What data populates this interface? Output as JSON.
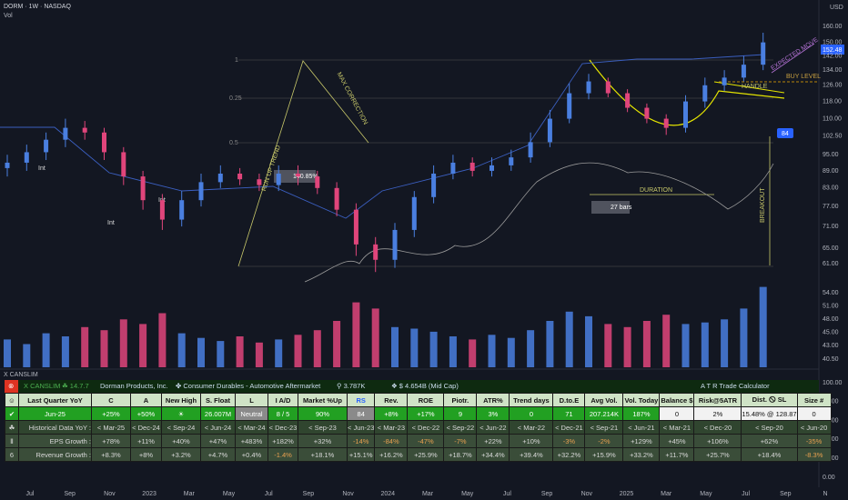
{
  "header": {
    "symbol": "DORM · 1W · NASDAQ",
    "pane": "Vol",
    "currency": "USD",
    "footer_label": "X CANSLIM",
    "last_price": "152.48"
  },
  "price_axis": [
    "160.00",
    "150.00",
    "142.00",
    "134.00",
    "126.00",
    "118.00",
    "110.00",
    "102.50",
    "95.00",
    "89.00",
    "83.00",
    "77.00",
    "71.00",
    "65.00",
    "61.00"
  ],
  "volume_axis": [
    "54.00",
    "51.00",
    "48.00",
    "45.00",
    "43.00",
    "40.50"
  ],
  "osc_axis": [
    "100.00",
    "80.00",
    "60.00",
    "40.00",
    "20.00",
    "0.00"
  ],
  "time_axis": [
    "Jul",
    "Sep",
    "Nov",
    "2023",
    "Mar",
    "May",
    "Jul",
    "Sep",
    "Nov",
    "2024",
    "Mar",
    "May",
    "Jul",
    "Sep",
    "Nov",
    "2025",
    "Mar",
    "May",
    "Jul",
    "Sep",
    "N"
  ],
  "annotations": {
    "level_1": "1",
    "level_025": "0.25",
    "level_05": "0.5",
    "run_up": "RUN UP TREND",
    "max_correction": "MAX CORRECTION",
    "gain": "140.85%",
    "bars": "27 bars",
    "duration": "DURATION",
    "handle": "HANDLE",
    "buy_level": "BUY LEVEL",
    "expected_move": "EXPECTED MOVE",
    "breakout": "BREAKOUT",
    "rs_badge": "84",
    "int": "Int"
  },
  "candles": {
    "up_color": "#4a7fe0",
    "down_color": "#e0457b",
    "open": [
      90,
      92,
      96,
      101,
      106,
      104,
      96,
      87,
      79,
      73,
      79,
      85,
      88,
      86,
      84,
      88,
      87,
      83,
      76,
      66,
      62,
      70,
      80,
      88,
      92,
      89,
      91,
      94,
      100,
      110,
      122,
      128,
      122,
      115,
      110,
      106,
      118,
      126,
      130,
      137
    ],
    "high": [
      95,
      99,
      104,
      110,
      109,
      106,
      98,
      89,
      81,
      82,
      88,
      91,
      90,
      88,
      91,
      91,
      89,
      85,
      78,
      68,
      72,
      82,
      91,
      95,
      94,
      94,
      97,
      104,
      114,
      127,
      132,
      130,
      124,
      117,
      112,
      121,
      130,
      134,
      142,
      156
    ],
    "low": [
      87,
      89,
      93,
      98,
      101,
      93,
      84,
      76,
      70,
      71,
      77,
      83,
      84,
      82,
      82,
      84,
      81,
      74,
      63,
      59,
      60,
      68,
      78,
      86,
      87,
      87,
      89,
      92,
      98,
      108,
      119,
      120,
      113,
      108,
      103,
      104,
      115,
      123,
      128,
      134
    ],
    "close": [
      92,
      96,
      101,
      106,
      104,
      96,
      87,
      79,
      73,
      79,
      85,
      88,
      86,
      84,
      88,
      87,
      83,
      76,
      66,
      62,
      70,
      80,
      88,
      92,
      89,
      91,
      94,
      100,
      110,
      122,
      128,
      122,
      115,
      110,
      106,
      118,
      126,
      130,
      137,
      150
    ],
    "volume": [
      180,
      150,
      220,
      200,
      260,
      240,
      310,
      280,
      350,
      220,
      190,
      170,
      200,
      160,
      180,
      210,
      240,
      300,
      420,
      380,
      260,
      250,
      230,
      200,
      180,
      210,
      190,
      240,
      300,
      360,
      330,
      280,
      260,
      300,
      340,
      280,
      290,
      310,
      380,
      520
    ]
  },
  "table": {
    "title": [
      "⊗",
      "X CANSLIM",
      "☘ 14.7.7",
      "Dorman Products, Inc.",
      "✤  Consumer Durables - Automotive Aftermarket",
      "⚲ 3.787K",
      "❖  $ 4.654B (Mid Cap)",
      "A T R  Trade  Calculator"
    ],
    "columns": [
      "☺",
      "Last Quarter YoY",
      "C",
      "A",
      "New High",
      "S. Float",
      "L",
      "I  A/D",
      "Market %Up",
      "RS",
      "Rev.",
      "ROE",
      "Piotr.",
      "ATR%",
      "Trend days",
      "D.to.E",
      "Avg Vol.",
      "Vol. Today",
      "Balance $",
      "Risk@5ATR",
      "Dist. 🛇 SL",
      "Size #"
    ],
    "rows": [
      [
        "✔",
        "Jun-25",
        "+25%",
        "+50%",
        "☀",
        "26.007M",
        "Neutral",
        "8 / 5",
        "90%",
        "84",
        "+8%",
        "+17%",
        "9",
        "3%",
        "0",
        "71",
        "207.214K",
        "187%",
        "0",
        "2%",
        "15.48% @ 128.87",
        "0"
      ],
      [
        "☘",
        "Historical Data YoY :",
        "< Mar-25",
        "< Dec-24",
        "< Sep-24",
        "< Jun-24",
        "< Mar-24",
        "< Dec-23",
        "< Sep-23",
        "< Jun-23",
        "< Mar-23",
        "< Dec-22",
        "< Sep-22",
        "< Jun-22",
        "< Mar-22",
        "< Dec-21",
        "< Sep-21",
        "< Jun-21",
        "< Mar-21",
        "< Dec-20",
        "< Sep-20",
        "< Jun-20"
      ],
      [
        "Ⅱ",
        "EPS Growth :",
        "+78%",
        "+11%",
        "+40%",
        "+47%",
        "+483%",
        "+182%",
        "+32%",
        "-14%",
        "-84%",
        "-47%",
        "-7%",
        "+22%",
        "+10%",
        "-3%",
        "-2%",
        "+129%",
        "+45%",
        "+106%",
        "+62%",
        "-35%"
      ],
      [
        "6",
        "Revenue Growth :",
        "+8.3%",
        "+8%",
        "+3.2%",
        "+4.7%",
        "+0.4%",
        "-1.4%",
        "+18.1%",
        "+15.1%",
        "+16.2%",
        "+25.9%",
        "+18.7%",
        "+34.4%",
        "+39.4%",
        "+32.2%",
        "+15.9%",
        "+33.2%",
        "+11.7%",
        "+25.7%",
        "+18.4%",
        "-8.3%"
      ]
    ]
  }
}
